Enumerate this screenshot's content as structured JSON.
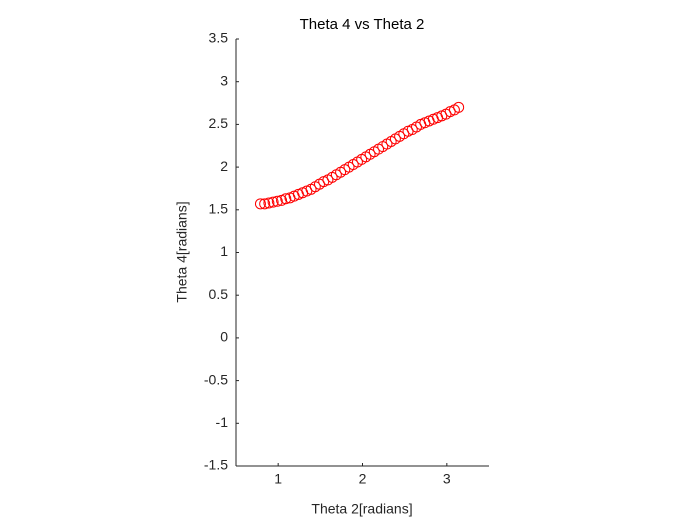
{
  "chart_data": {
    "type": "scatter",
    "title": "Theta 4 vs Theta 2",
    "x_label": "Theta 2[radians]",
    "y_label": "Theta 4[radians]",
    "xlim": [
      0.5,
      3.5
    ],
    "xticks": [
      1,
      2,
      3
    ],
    "ylim": [
      -1.5,
      3.5
    ],
    "yticks": [
      -1.5,
      -1,
      -0.5,
      0,
      0.5,
      1,
      1.5,
      2,
      2.5,
      3,
      3.5
    ],
    "grid": false,
    "series": [
      {
        "color": "#ff0000",
        "x": [
          0.79,
          0.84,
          0.89,
          0.94,
          0.99,
          1.04,
          1.09,
          1.14,
          1.19,
          1.24,
          1.29,
          1.34,
          1.39,
          1.44,
          1.49,
          1.54,
          1.59,
          1.64,
          1.69,
          1.74,
          1.79,
          1.84,
          1.89,
          1.94,
          1.99,
          2.04,
          2.09,
          2.14,
          2.19,
          2.24,
          2.29,
          2.34,
          2.39,
          2.44,
          2.49,
          2.54,
          2.59,
          2.64,
          2.69,
          2.74,
          2.79,
          2.84,
          2.89,
          2.94,
          2.99,
          3.04,
          3.09,
          3.14
        ],
        "values": [
          1.57,
          1.57,
          1.58,
          1.59,
          1.6,
          1.61,
          1.63,
          1.64,
          1.66,
          1.68,
          1.7,
          1.72,
          1.74,
          1.77,
          1.8,
          1.83,
          1.85,
          1.88,
          1.91,
          1.94,
          1.97,
          2.0,
          2.03,
          2.06,
          2.09,
          2.12,
          2.15,
          2.18,
          2.21,
          2.24,
          2.27,
          2.3,
          2.33,
          2.36,
          2.39,
          2.42,
          2.44,
          2.47,
          2.5,
          2.52,
          2.54,
          2.56,
          2.58,
          2.6,
          2.62,
          2.65,
          2.67,
          2.7
        ]
      }
    ]
  }
}
